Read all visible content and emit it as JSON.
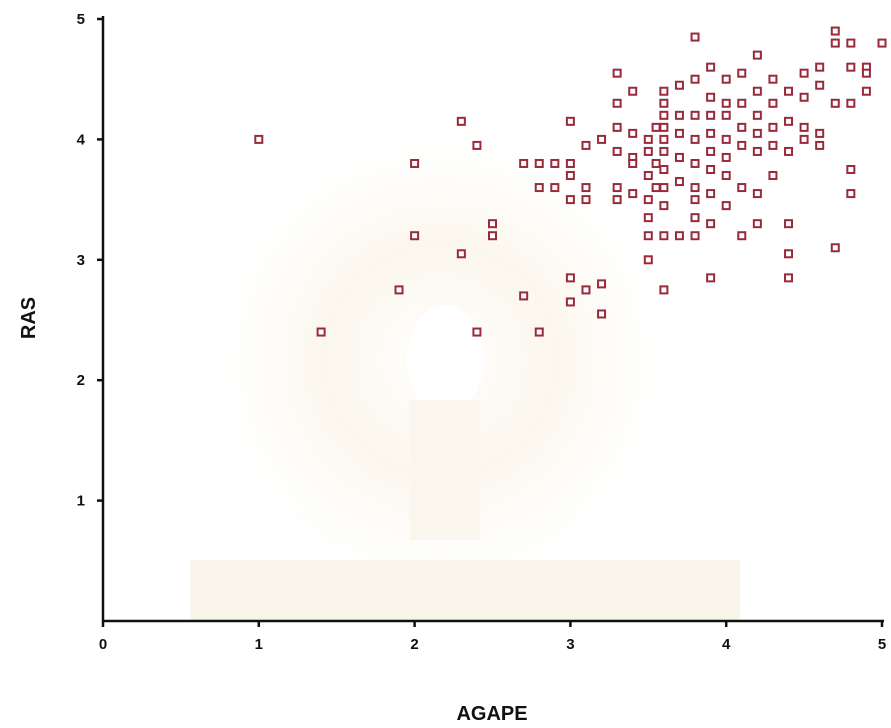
{
  "chart_data": {
    "type": "scatter",
    "xlabel": "AGAPE",
    "ylabel": "RAS",
    "xlim": [
      0,
      5
    ],
    "ylim": [
      0,
      5
    ],
    "x_ticks": [
      "0",
      "1",
      "2",
      "3",
      "4",
      "5"
    ],
    "y_ticks": [
      "1",
      "2",
      "3",
      "4",
      "5"
    ],
    "grid": false,
    "marker_color": "#9a2a3a",
    "points": [
      {
        "x": 1.0,
        "y": 4.0
      },
      {
        "x": 1.4,
        "y": 2.4
      },
      {
        "x": 1.9,
        "y": 2.75
      },
      {
        "x": 2.0,
        "y": 3.8
      },
      {
        "x": 2.0,
        "y": 3.2
      },
      {
        "x": 2.3,
        "y": 4.15
      },
      {
        "x": 2.3,
        "y": 3.05
      },
      {
        "x": 2.4,
        "y": 3.95
      },
      {
        "x": 2.4,
        "y": 2.4
      },
      {
        "x": 2.5,
        "y": 3.3
      },
      {
        "x": 2.5,
        "y": 3.2
      },
      {
        "x": 2.7,
        "y": 3.8
      },
      {
        "x": 2.7,
        "y": 2.7
      },
      {
        "x": 2.8,
        "y": 3.8
      },
      {
        "x": 2.8,
        "y": 3.6
      },
      {
        "x": 2.8,
        "y": 2.4
      },
      {
        "x": 2.9,
        "y": 3.8
      },
      {
        "x": 2.9,
        "y": 3.6
      },
      {
        "x": 3.0,
        "y": 4.15
      },
      {
        "x": 3.0,
        "y": 3.8
      },
      {
        "x": 3.0,
        "y": 3.7
      },
      {
        "x": 3.0,
        "y": 3.5
      },
      {
        "x": 3.0,
        "y": 2.85
      },
      {
        "x": 3.0,
        "y": 2.65
      },
      {
        "x": 3.1,
        "y": 3.95
      },
      {
        "x": 3.1,
        "y": 3.6
      },
      {
        "x": 3.1,
        "y": 3.5
      },
      {
        "x": 3.1,
        "y": 2.75
      },
      {
        "x": 3.2,
        "y": 4.0
      },
      {
        "x": 3.2,
        "y": 2.8
      },
      {
        "x": 3.2,
        "y": 2.55
      },
      {
        "x": 3.3,
        "y": 4.55
      },
      {
        "x": 3.3,
        "y": 4.3
      },
      {
        "x": 3.3,
        "y": 4.1
      },
      {
        "x": 3.3,
        "y": 3.9
      },
      {
        "x": 3.3,
        "y": 3.6
      },
      {
        "x": 3.3,
        "y": 3.5
      },
      {
        "x": 3.4,
        "y": 4.4
      },
      {
        "x": 3.4,
        "y": 4.05
      },
      {
        "x": 3.4,
        "y": 3.85
      },
      {
        "x": 3.4,
        "y": 3.8
      },
      {
        "x": 3.4,
        "y": 3.55
      },
      {
        "x": 3.5,
        "y": 4.0
      },
      {
        "x": 3.5,
        "y": 3.9
      },
      {
        "x": 3.5,
        "y": 3.7
      },
      {
        "x": 3.5,
        "y": 3.5
      },
      {
        "x": 3.5,
        "y": 3.2
      },
      {
        "x": 3.5,
        "y": 3.0
      },
      {
        "x": 3.5,
        "y": 3.35
      },
      {
        "x": 3.55,
        "y": 4.1
      },
      {
        "x": 3.55,
        "y": 3.8
      },
      {
        "x": 3.55,
        "y": 3.6
      },
      {
        "x": 3.6,
        "y": 4.4
      },
      {
        "x": 3.6,
        "y": 4.3
      },
      {
        "x": 3.6,
        "y": 4.2
      },
      {
        "x": 3.6,
        "y": 4.1
      },
      {
        "x": 3.6,
        "y": 4.0
      },
      {
        "x": 3.6,
        "y": 3.9
      },
      {
        "x": 3.6,
        "y": 3.75
      },
      {
        "x": 3.6,
        "y": 3.6
      },
      {
        "x": 3.6,
        "y": 3.45
      },
      {
        "x": 3.6,
        "y": 3.2
      },
      {
        "x": 3.6,
        "y": 2.75
      },
      {
        "x": 3.7,
        "y": 4.45
      },
      {
        "x": 3.7,
        "y": 4.2
      },
      {
        "x": 3.7,
        "y": 4.05
      },
      {
        "x": 3.7,
        "y": 3.85
      },
      {
        "x": 3.7,
        "y": 3.65
      },
      {
        "x": 3.7,
        "y": 3.2
      },
      {
        "x": 3.8,
        "y": 4.85
      },
      {
        "x": 3.8,
        "y": 4.5
      },
      {
        "x": 3.8,
        "y": 4.2
      },
      {
        "x": 3.8,
        "y": 4.0
      },
      {
        "x": 3.8,
        "y": 3.8
      },
      {
        "x": 3.8,
        "y": 3.6
      },
      {
        "x": 3.8,
        "y": 3.5
      },
      {
        "x": 3.8,
        "y": 3.35
      },
      {
        "x": 3.8,
        "y": 3.2
      },
      {
        "x": 3.9,
        "y": 4.6
      },
      {
        "x": 3.9,
        "y": 4.35
      },
      {
        "x": 3.9,
        "y": 4.2
      },
      {
        "x": 3.9,
        "y": 4.05
      },
      {
        "x": 3.9,
        "y": 3.9
      },
      {
        "x": 3.9,
        "y": 3.75
      },
      {
        "x": 3.9,
        "y": 3.55
      },
      {
        "x": 3.9,
        "y": 3.3
      },
      {
        "x": 3.9,
        "y": 2.85
      },
      {
        "x": 4.0,
        "y": 4.5
      },
      {
        "x": 4.0,
        "y": 4.3
      },
      {
        "x": 4.0,
        "y": 4.2
      },
      {
        "x": 4.0,
        "y": 4.0
      },
      {
        "x": 4.0,
        "y": 3.85
      },
      {
        "x": 4.0,
        "y": 3.7
      },
      {
        "x": 4.0,
        "y": 3.45
      },
      {
        "x": 4.1,
        "y": 4.55
      },
      {
        "x": 4.1,
        "y": 4.3
      },
      {
        "x": 4.1,
        "y": 4.1
      },
      {
        "x": 4.1,
        "y": 3.95
      },
      {
        "x": 4.1,
        "y": 3.6
      },
      {
        "x": 4.1,
        "y": 3.2
      },
      {
        "x": 4.2,
        "y": 4.7
      },
      {
        "x": 4.2,
        "y": 4.4
      },
      {
        "x": 4.2,
        "y": 4.2
      },
      {
        "x": 4.2,
        "y": 4.05
      },
      {
        "x": 4.2,
        "y": 3.9
      },
      {
        "x": 4.2,
        "y": 3.55
      },
      {
        "x": 4.2,
        "y": 3.3
      },
      {
        "x": 4.3,
        "y": 4.5
      },
      {
        "x": 4.3,
        "y": 4.3
      },
      {
        "x": 4.3,
        "y": 4.1
      },
      {
        "x": 4.3,
        "y": 3.95
      },
      {
        "x": 4.3,
        "y": 3.7
      },
      {
        "x": 4.4,
        "y": 4.4
      },
      {
        "x": 4.4,
        "y": 4.15
      },
      {
        "x": 4.4,
        "y": 3.9
      },
      {
        "x": 4.4,
        "y": 3.3
      },
      {
        "x": 4.4,
        "y": 3.05
      },
      {
        "x": 4.4,
        "y": 2.85
      },
      {
        "x": 4.5,
        "y": 4.55
      },
      {
        "x": 4.5,
        "y": 4.35
      },
      {
        "x": 4.5,
        "y": 4.1
      },
      {
        "x": 4.5,
        "y": 4.0
      },
      {
        "x": 4.6,
        "y": 4.6
      },
      {
        "x": 4.6,
        "y": 4.45
      },
      {
        "x": 4.6,
        "y": 4.05
      },
      {
        "x": 4.6,
        "y": 3.95
      },
      {
        "x": 4.7,
        "y": 4.9
      },
      {
        "x": 4.7,
        "y": 4.8
      },
      {
        "x": 4.7,
        "y": 4.3
      },
      {
        "x": 4.7,
        "y": 3.1
      },
      {
        "x": 4.8,
        "y": 4.8
      },
      {
        "x": 4.8,
        "y": 4.6
      },
      {
        "x": 4.8,
        "y": 4.3
      },
      {
        "x": 4.8,
        "y": 3.75
      },
      {
        "x": 4.8,
        "y": 3.55
      },
      {
        "x": 4.9,
        "y": 4.6
      },
      {
        "x": 4.9,
        "y": 4.55
      },
      {
        "x": 4.9,
        "y": 4.4
      },
      {
        "x": 5.0,
        "y": 4.8
      }
    ]
  }
}
